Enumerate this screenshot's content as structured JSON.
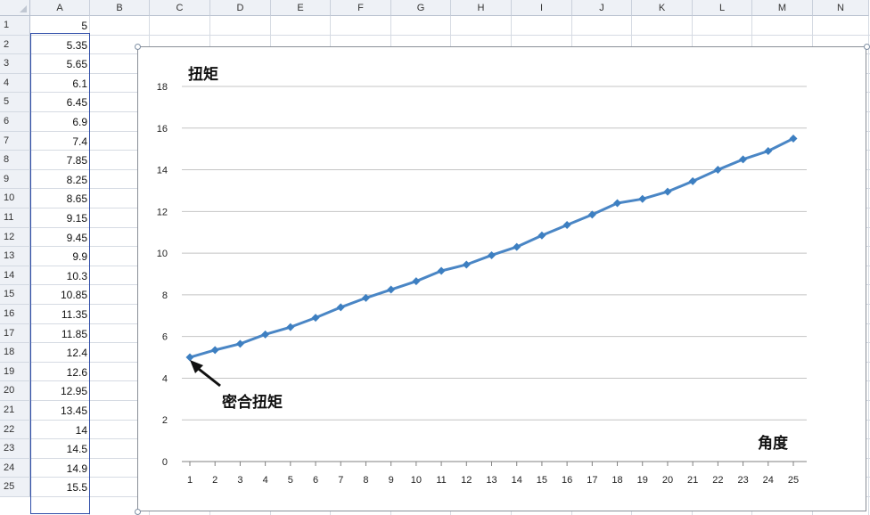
{
  "columns": [
    "A",
    "B",
    "C",
    "D",
    "E",
    "F",
    "G",
    "H",
    "I",
    "J",
    "K",
    "L",
    "M",
    "N"
  ],
  "rows": [
    1,
    2,
    3,
    4,
    5,
    6,
    7,
    8,
    9,
    10,
    11,
    12,
    13,
    14,
    15,
    16,
    17,
    18,
    19,
    20,
    21,
    22,
    23,
    24,
    25
  ],
  "column_a_values": [
    "5",
    "5.35",
    "5.65",
    "6.1",
    "6.45",
    "6.9",
    "7.4",
    "7.85",
    "8.25",
    "8.65",
    "9.15",
    "9.45",
    "9.9",
    "10.3",
    "10.85",
    "11.35",
    "11.85",
    "12.4",
    "12.6",
    "12.95",
    "13.45",
    "14",
    "14.5",
    "14.9",
    "15.5"
  ],
  "chart_data": {
    "type": "line",
    "title": "",
    "ylabel": "扭矩",
    "xlabel": "角度",
    "categories": [
      "1",
      "2",
      "3",
      "4",
      "5",
      "6",
      "7",
      "8",
      "9",
      "10",
      "11",
      "12",
      "13",
      "14",
      "15",
      "16",
      "17",
      "18",
      "19",
      "20",
      "21",
      "22",
      "23",
      "24",
      "25"
    ],
    "series": [
      {
        "values": [
          5,
          5.35,
          5.65,
          6.1,
          6.45,
          6.9,
          7.4,
          7.85,
          8.25,
          8.65,
          9.15,
          9.45,
          9.9,
          10.3,
          10.85,
          11.35,
          11.85,
          12.4,
          12.6,
          12.95,
          13.45,
          14,
          14.5,
          14.9,
          15.5
        ],
        "color": "#4a86c5"
      }
    ],
    "ylim": [
      0,
      18
    ],
    "yticks": [
      "0",
      "2",
      "4",
      "6",
      "8",
      "10",
      "12",
      "14",
      "16",
      "18"
    ],
    "grid": true,
    "legend": "none",
    "annotation": {
      "text": "密合扭矩",
      "x": "1",
      "y": 5
    }
  }
}
